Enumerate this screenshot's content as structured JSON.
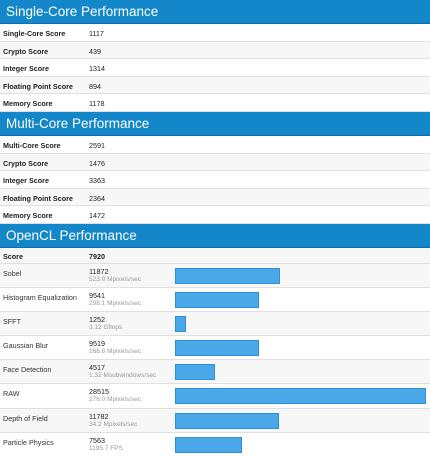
{
  "single_core": {
    "title": "Single-Core Performance",
    "rows": [
      {
        "label": "Single-Core Score",
        "value": "1117"
      },
      {
        "label": "Crypto Score",
        "value": "439"
      },
      {
        "label": "Integer Score",
        "value": "1314"
      },
      {
        "label": "Floating Point Score",
        "value": "894"
      },
      {
        "label": "Memory Score",
        "value": "1178"
      }
    ]
  },
  "multi_core": {
    "title": "Multi-Core Performance",
    "rows": [
      {
        "label": "Multi-Core Score",
        "value": "2591"
      },
      {
        "label": "Crypto Score",
        "value": "1476"
      },
      {
        "label": "Integer Score",
        "value": "3363"
      },
      {
        "label": "Floating Point Score",
        "value": "2364"
      },
      {
        "label": "Memory Score",
        "value": "1472"
      }
    ]
  },
  "opencl": {
    "title": "OpenCL Performance",
    "score_label": "Score",
    "score_value": "7920",
    "max_score": 28515,
    "benchmarks": [
      {
        "label": "Sobel",
        "score": 11872,
        "sub": "523.0 Mpixels/sec"
      },
      {
        "label": "Histogram Equalization",
        "score": 9541,
        "sub": "298.1 Mpixels/sec"
      },
      {
        "label": "SFFT",
        "score": 1252,
        "sub": "3.12 Gflops"
      },
      {
        "label": "Gaussian Blur",
        "score": 9519,
        "sub": "166.8 Mpixels/sec"
      },
      {
        "label": "Face Detection",
        "score": 4517,
        "sub": "1.32 Msubwindows/sec"
      },
      {
        "label": "RAW",
        "score": 28515,
        "sub": "276.0 Mpixels/sec"
      },
      {
        "label": "Depth of Field",
        "score": 11782,
        "sub": "34.2 Mpixels/sec"
      },
      {
        "label": "Particle Physics",
        "score": 7563,
        "sub": "1195.7 FPS"
      }
    ]
  },
  "colors": {
    "header": "#1387c9",
    "bar": "#4aa8e8"
  }
}
